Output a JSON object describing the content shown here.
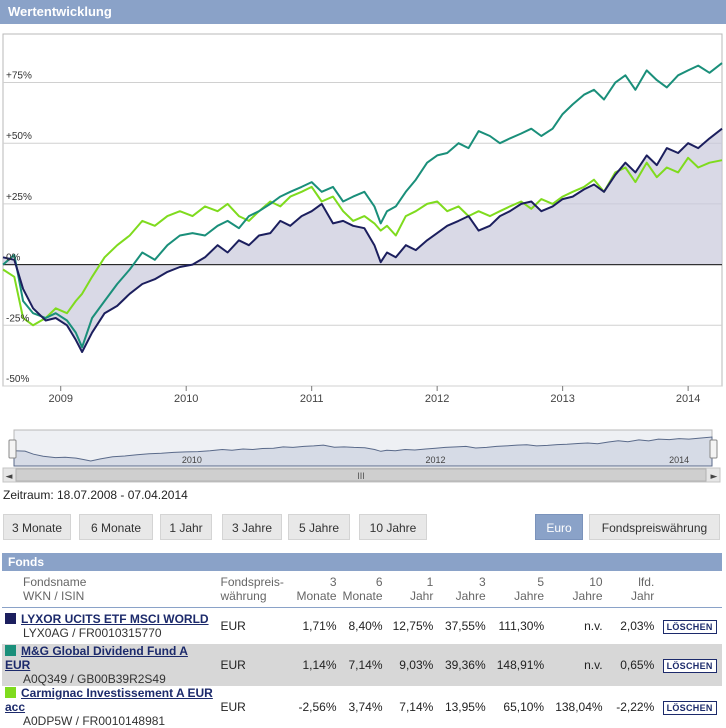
{
  "panel": {
    "title": "Wertentwicklung"
  },
  "chart_data": {
    "type": "line",
    "yticks": [
      "+75%",
      "+50%",
      "+25%",
      "0%",
      "-25%",
      "-50%"
    ],
    "ytick_values": [
      75,
      50,
      25,
      0,
      -25,
      -50
    ],
    "ylim": [
      -50,
      95
    ],
    "xlim": [
      2008.54,
      2014.27
    ],
    "xticks": [
      "2009",
      "2010",
      "2011",
      "2012",
      "2013",
      "2014"
    ],
    "xtick_values": [
      2009,
      2010,
      2011,
      2012,
      2013,
      2014
    ],
    "series": [
      {
        "name": "LYXOR UCITS ETF MSCI WORLD",
        "color": "#1c1f5e",
        "fill": true,
        "x": [
          2008.54,
          2008.63,
          2008.7,
          2008.78,
          2008.88,
          2008.96,
          2009.05,
          2009.12,
          2009.17,
          2009.25,
          2009.35,
          2009.45,
          2009.55,
          2009.65,
          2009.75,
          2009.85,
          2009.95,
          2010.05,
          2010.15,
          2010.25,
          2010.33,
          2010.42,
          2010.5,
          2010.58,
          2010.67,
          2010.75,
          2010.83,
          2010.92,
          2011.0,
          2011.08,
          2011.17,
          2011.25,
          2011.33,
          2011.42,
          2011.5,
          2011.55,
          2011.6,
          2011.67,
          2011.75,
          2011.83,
          2011.92,
          2012.0,
          2012.08,
          2012.17,
          2012.25,
          2012.33,
          2012.42,
          2012.5,
          2012.58,
          2012.67,
          2012.75,
          2012.83,
          2012.92,
          2013.0,
          2013.08,
          2013.17,
          2013.25,
          2013.33,
          2013.42,
          2013.5,
          2013.58,
          2013.67,
          2013.75,
          2013.83,
          2013.92,
          2014.0,
          2014.08,
          2014.17,
          2014.27
        ],
        "y": [
          3,
          2,
          -10,
          -18,
          -23,
          -22,
          -25,
          -31,
          -36,
          -28,
          -20,
          -17,
          -12,
          -8,
          -6,
          -3,
          -1,
          0,
          3,
          8,
          5,
          10,
          8,
          12,
          13,
          18,
          16,
          20,
          22,
          25,
          17,
          18,
          16,
          15,
          8,
          1,
          5,
          3,
          8,
          6,
          10,
          13,
          16,
          18,
          20,
          14,
          16,
          20,
          22,
          25,
          26,
          22,
          24,
          27,
          28,
          31,
          33,
          30,
          37,
          42,
          38,
          45,
          41,
          48,
          46,
          50,
          48,
          52,
          56
        ]
      },
      {
        "name": "M&G Global Dividend Fund A EUR",
        "color": "#1a8f7a",
        "fill": false,
        "x": [
          2008.54,
          2008.63,
          2008.7,
          2008.78,
          2008.88,
          2008.96,
          2009.05,
          2009.12,
          2009.17,
          2009.25,
          2009.35,
          2009.45,
          2009.55,
          2009.65,
          2009.75,
          2009.85,
          2009.95,
          2010.05,
          2010.15,
          2010.25,
          2010.33,
          2010.42,
          2010.5,
          2010.58,
          2010.67,
          2010.75,
          2010.83,
          2010.92,
          2011.0,
          2011.08,
          2011.17,
          2011.25,
          2011.33,
          2011.42,
          2011.5,
          2011.55,
          2011.6,
          2011.67,
          2011.75,
          2011.83,
          2011.92,
          2012.0,
          2012.08,
          2012.17,
          2012.25,
          2012.33,
          2012.42,
          2012.5,
          2012.58,
          2012.67,
          2012.75,
          2012.83,
          2012.92,
          2013.0,
          2013.08,
          2013.17,
          2013.25,
          2013.33,
          2013.42,
          2013.5,
          2013.58,
          2013.67,
          2013.75,
          2013.83,
          2013.92,
          2014.0,
          2014.08,
          2014.17,
          2014.27
        ],
        "y": [
          0,
          4,
          -15,
          -20,
          -22,
          -20,
          -23,
          -28,
          -34,
          -22,
          -15,
          -8,
          -2,
          5,
          2,
          8,
          12,
          13,
          12,
          16,
          18,
          15,
          20,
          22,
          25,
          28,
          30,
          32,
          34,
          30,
          32,
          26,
          28,
          30,
          24,
          17,
          22,
          24,
          30,
          35,
          42,
          45,
          46,
          50,
          48,
          55,
          53,
          50,
          52,
          54,
          56,
          53,
          56,
          62,
          66,
          70,
          72,
          68,
          75,
          78,
          72,
          80,
          76,
          73,
          78,
          80,
          82,
          79,
          83
        ]
      },
      {
        "name": "Carmignac Investissement A EUR acc",
        "color": "#7fdb1e",
        "fill": false,
        "x": [
          2008.54,
          2008.63,
          2008.7,
          2008.78,
          2008.88,
          2008.96,
          2009.05,
          2009.12,
          2009.17,
          2009.25,
          2009.35,
          2009.45,
          2009.55,
          2009.65,
          2009.75,
          2009.85,
          2009.95,
          2010.05,
          2010.15,
          2010.25,
          2010.33,
          2010.42,
          2010.5,
          2010.58,
          2010.67,
          2010.75,
          2010.83,
          2010.92,
          2011.0,
          2011.08,
          2011.17,
          2011.25,
          2011.33,
          2011.42,
          2011.5,
          2011.55,
          2011.6,
          2011.67,
          2011.75,
          2011.83,
          2011.92,
          2012.0,
          2012.08,
          2012.17,
          2012.25,
          2012.33,
          2012.42,
          2012.5,
          2012.58,
          2012.67,
          2012.75,
          2012.83,
          2012.92,
          2013.0,
          2013.08,
          2013.17,
          2013.25,
          2013.33,
          2013.42,
          2013.5,
          2013.58,
          2013.67,
          2013.75,
          2013.83,
          2013.92,
          2014.0,
          2014.08,
          2014.17,
          2014.27
        ],
        "y": [
          -2,
          -5,
          -22,
          -25,
          -22,
          -18,
          -20,
          -15,
          -12,
          -5,
          3,
          8,
          12,
          18,
          16,
          20,
          22,
          20,
          24,
          22,
          25,
          20,
          18,
          22,
          26,
          24,
          28,
          30,
          32,
          26,
          28,
          22,
          18,
          20,
          17,
          14,
          16,
          12,
          20,
          22,
          25,
          26,
          22,
          24,
          20,
          22,
          20,
          22,
          24,
          26,
          23,
          27,
          25,
          28,
          30,
          32,
          35,
          30,
          38,
          40,
          34,
          42,
          36,
          40,
          38,
          44,
          40,
          42,
          43
        ]
      }
    ]
  },
  "navigator": {
    "labels": [
      "2010",
      "2012",
      "2014"
    ],
    "label_values": [
      2010,
      2012,
      2014
    ],
    "grip": "III",
    "left_arrow": "◄",
    "right_arrow": "►"
  },
  "zeitraum": "Zeitraum: 18.07.2008 - 07.04.2014",
  "buttons": {
    "b3m": "3 Monate",
    "b6m": "6 Monate",
    "b1j": "1 Jahr",
    "b3j": "3 Jahre",
    "b5j": "5 Jahre",
    "b10j": "10 Jahre",
    "euro": "Euro",
    "fpw": "Fondspreiswährung"
  },
  "fonds": {
    "title": "Fonds",
    "headers": {
      "fondsname": "Fondsname",
      "wkn": "WKN / ISIN",
      "fpw1": "Fondspreis-",
      "fpw2": "währung",
      "m3a": "3",
      "m3b": "Monate",
      "m6a": "6",
      "m6b": "Monate",
      "j1a": "1",
      "j1b": "Jahr",
      "j3a": "3",
      "j3b": "Jahre",
      "j5a": "5",
      "j5b": "Jahre",
      "j10a": "10",
      "j10b": "Jahre",
      "lfda": "lfd.",
      "lfdb": "Jahr"
    },
    "rows": [
      {
        "name": "LYXOR UCITS ETF MSCI WORLD",
        "id": "LYX0AG / FR0010315770",
        "color": "#1c1f5e",
        "cur": "EUR",
        "m3": "1,71%",
        "m6": "8,40%",
        "j1": "12,75%",
        "j3": "37,55%",
        "j5": "111,30%",
        "j10": "n.v.",
        "lfd": "2,03%",
        "del": "LÖSCHEN"
      },
      {
        "name": "M&G Global Dividend Fund A EUR",
        "id": "A0Q349 / GB00B39R2S49",
        "color": "#1a8f7a",
        "cur": "EUR",
        "m3": "1,14%",
        "m6": "7,14%",
        "j1": "9,03%",
        "j3": "39,36%",
        "j5": "148,91%",
        "j10": "n.v.",
        "lfd": "0,65%",
        "del": "LÖSCHEN"
      },
      {
        "name": "Carmignac Investissement A EUR acc",
        "id": "A0DP5W / FR0010148981",
        "color": "#7fdb1e",
        "cur": "EUR",
        "m3": "-2,56%",
        "m6": "3,74%",
        "j1": "7,14%",
        "j3": "13,95%",
        "j5": "65,10%",
        "j10": "138,04%",
        "lfd": "-2,22%",
        "del": "LÖSCHEN"
      }
    ]
  }
}
